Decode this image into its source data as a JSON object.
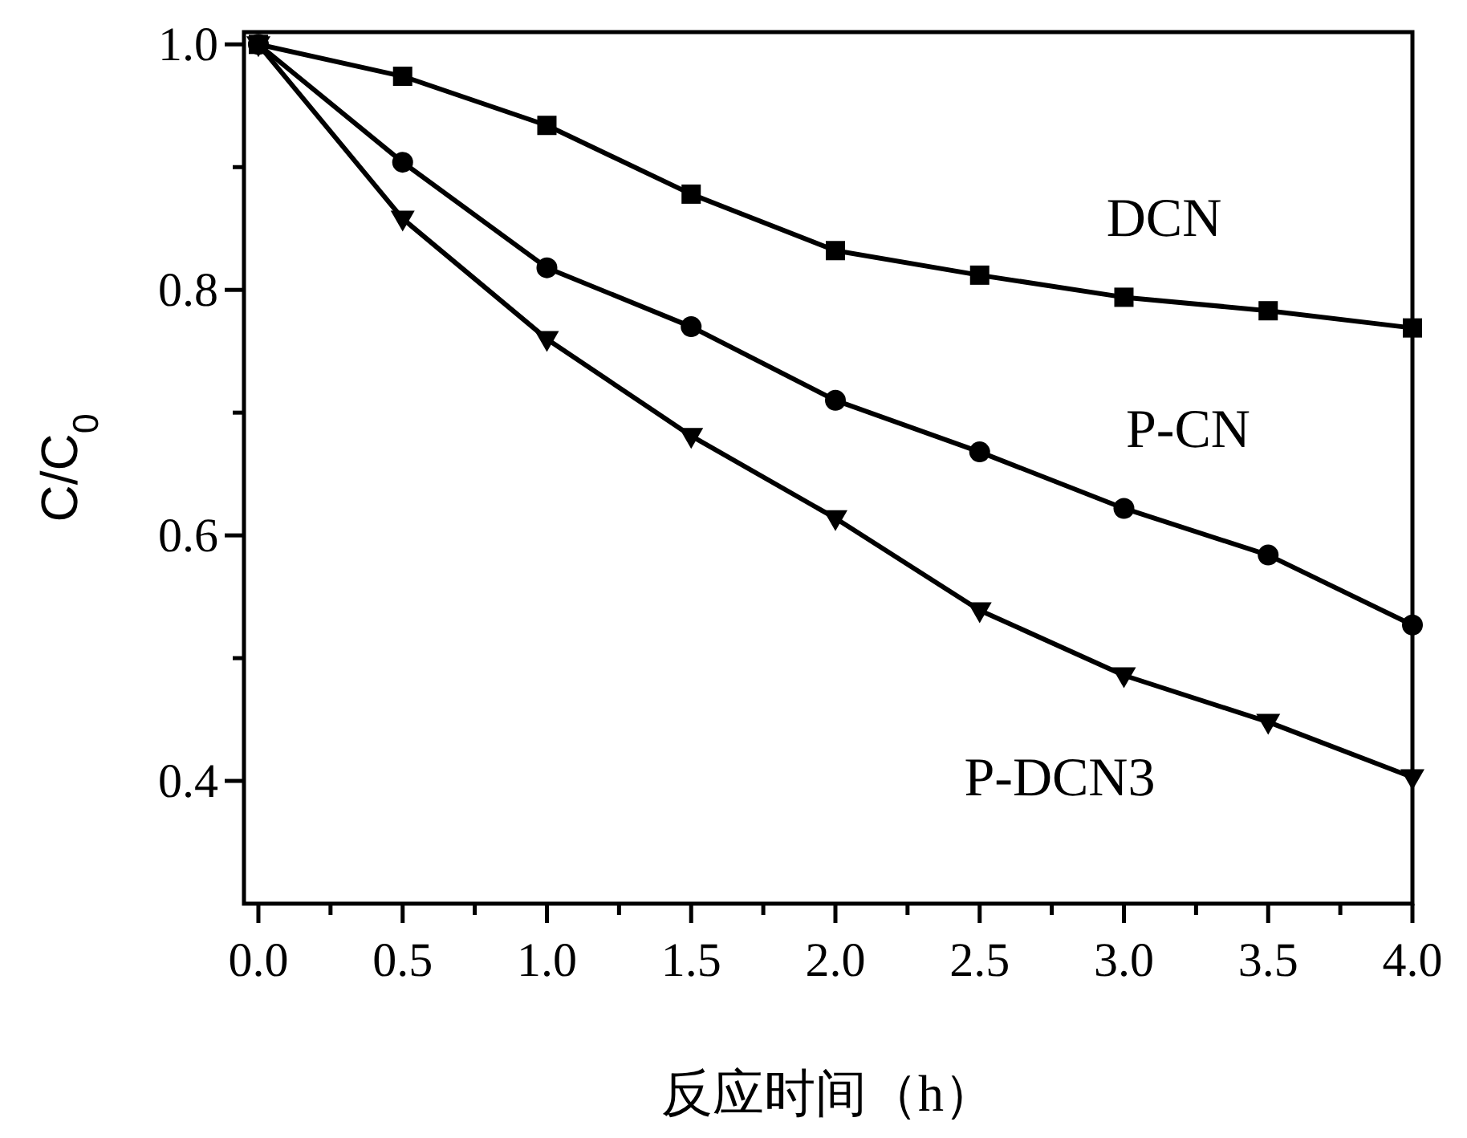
{
  "chart_data": {
    "type": "line",
    "xlabel": "反应时间（h）",
    "ylabel": "C/C$_{0}$",
    "x": [
      0,
      0.5,
      1.0,
      1.5,
      2.0,
      2.5,
      3.0,
      3.5,
      4.0
    ],
    "series": [
      {
        "name": "DCN",
        "color": "#000000",
        "marker": "square",
        "values": [
          1.0,
          0.974,
          0.934,
          0.878,
          0.832,
          0.812,
          0.794,
          0.783,
          0.769
        ]
      },
      {
        "name": "P-CN",
        "color": "#000000",
        "marker": "circle",
        "values": [
          1.0,
          0.904,
          0.818,
          0.77,
          0.71,
          0.668,
          0.622,
          0.584,
          0.527
        ]
      },
      {
        "name": "P-DCN3",
        "color": "#000000",
        "marker": "triangle",
        "values": [
          1.0,
          0.858,
          0.76,
          0.681,
          0.614,
          0.539,
          0.486,
          0.448,
          0.403
        ]
      }
    ],
    "xlim": [
      -0.05,
      4.0
    ],
    "ylim": [
      0.3,
      1.01
    ],
    "xticks": [
      {
        "value": 0,
        "label": "0.0"
      },
      {
        "value": 0.25,
        "label": null
      },
      {
        "value": 0.5,
        "label": "0.5"
      },
      {
        "value": 0.75,
        "label": null
      },
      {
        "value": 1,
        "label": "1.0"
      },
      {
        "value": 1.25,
        "label": null
      },
      {
        "value": 1.5,
        "label": "1.5"
      },
      {
        "value": 1.75,
        "label": null
      },
      {
        "value": 2,
        "label": "2.0"
      },
      {
        "value": 2.25,
        "label": null
      },
      {
        "value": 2.5,
        "label": "2.5"
      },
      {
        "value": 2.75,
        "label": null
      },
      {
        "value": 3,
        "label": "3.0"
      },
      {
        "value": 3.25,
        "label": null
      },
      {
        "value": 3.5,
        "label": "3.5"
      },
      {
        "value": 3.75,
        "label": null
      },
      {
        "value": 4,
        "label": "4.0"
      }
    ],
    "yticks": [
      0.4,
      {
        "value": 0.5,
        "label": null
      },
      0.6,
      {
        "value": 0.7,
        "label": null
      },
      0.8,
      {
        "value": 0.9,
        "label": null
      },
      {
        "value": 1,
        "label": "1.0"
      }
    ],
    "line_style": "solid"
  }
}
